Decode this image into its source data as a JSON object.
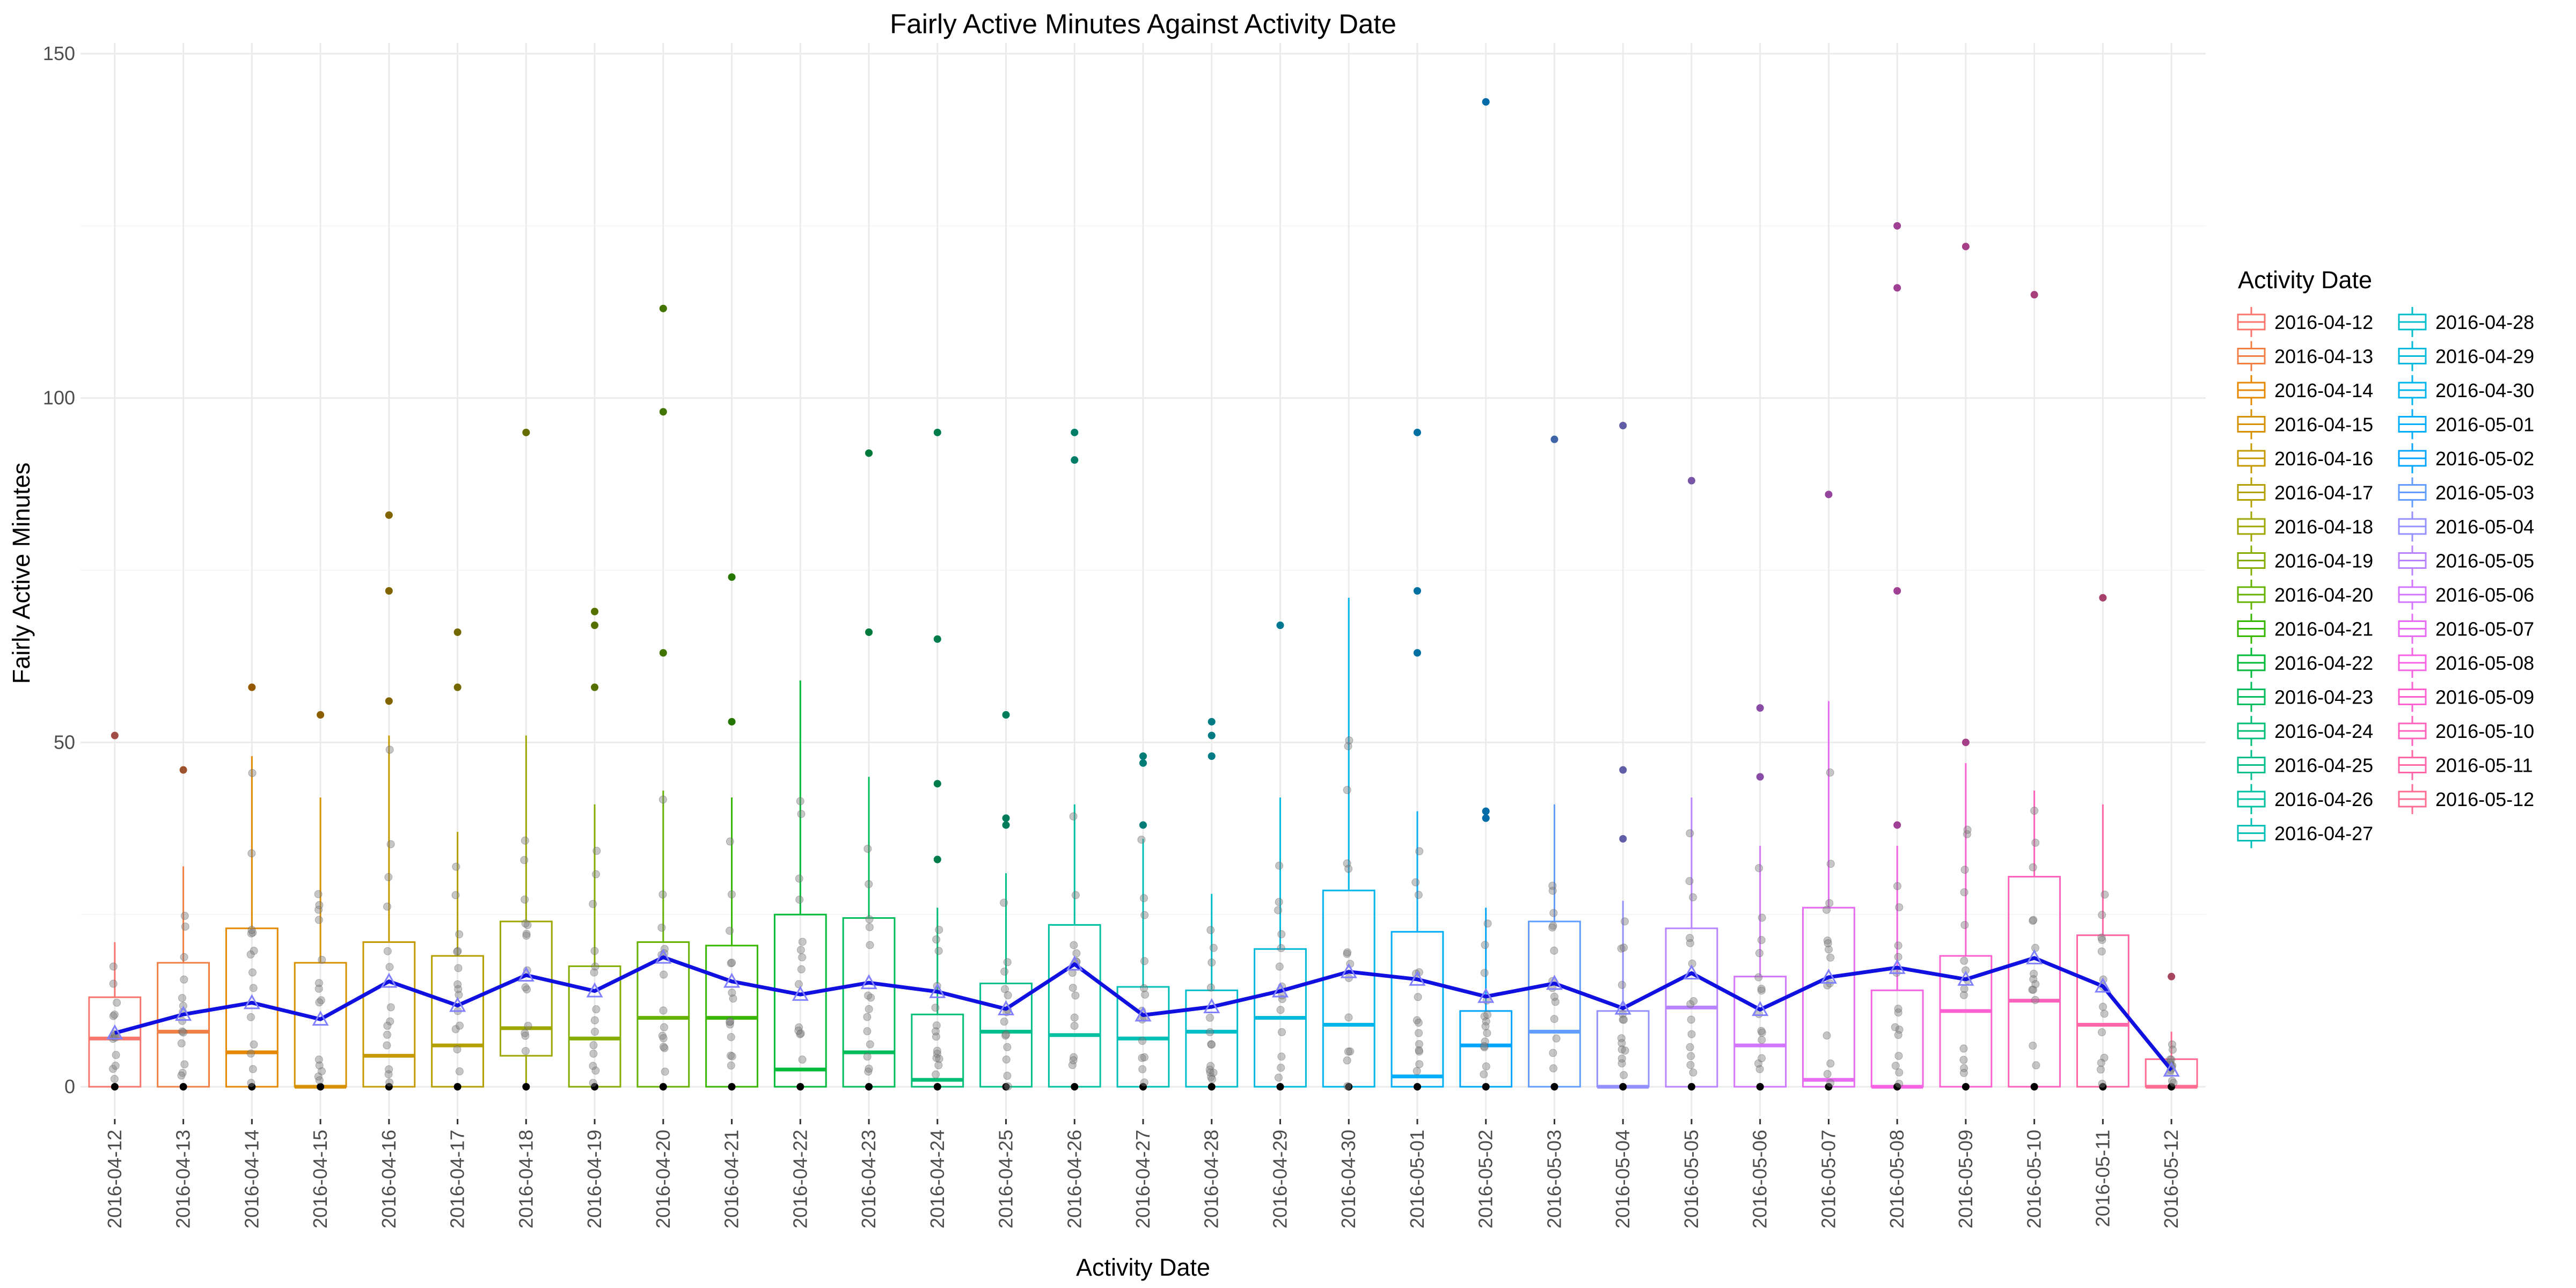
{
  "chart_data": {
    "type": "box",
    "title": "Fairly Active Minutes Against Activity Date",
    "xlabel": "Activity Date",
    "ylabel": "Fairly Active Minutes",
    "ylim": [
      -6,
      150
    ],
    "yticks": [
      0,
      50,
      100,
      150
    ],
    "grid": true,
    "legend_title": "Activity Date",
    "legend_position": "right",
    "mean_line_color": "#1010e0",
    "colors": [
      "#F8766D",
      "#F07F45",
      "#E48800",
      "#D69100",
      "#C69900",
      "#B3A000",
      "#9DA700",
      "#84AD00",
      "#65B200",
      "#38B600",
      "#00BA38",
      "#00BC5A",
      "#00BE75",
      "#00BF8C",
      "#00C0A2",
      "#00BFB7",
      "#00BDCA",
      "#00B9DC",
      "#00B4EC",
      "#00ADF9",
      "#00A5FF",
      "#619CFF",
      "#9590FF",
      "#B983FF",
      "#D376FF",
      "#E76BF3",
      "#F563E3",
      "#FD61D1",
      "#FF62BD",
      "#FF65A7",
      "#FF6C91"
    ],
    "categories": [
      "2016-04-12",
      "2016-04-13",
      "2016-04-14",
      "2016-04-15",
      "2016-04-16",
      "2016-04-17",
      "2016-04-18",
      "2016-04-19",
      "2016-04-20",
      "2016-04-21",
      "2016-04-22",
      "2016-04-23",
      "2016-04-24",
      "2016-04-25",
      "2016-04-26",
      "2016-04-27",
      "2016-04-28",
      "2016-04-29",
      "2016-04-30",
      "2016-05-01",
      "2016-05-02",
      "2016-05-03",
      "2016-05-04",
      "2016-05-05",
      "2016-05-06",
      "2016-05-07",
      "2016-05-08",
      "2016-05-09",
      "2016-05-10",
      "2016-05-11",
      "2016-05-12"
    ],
    "boxes": [
      {
        "min": 0,
        "q1": 0,
        "median": 7,
        "q3": 13,
        "max": 21,
        "mean": 7.8,
        "outliers": [
          51
        ]
      },
      {
        "min": 0,
        "q1": 0,
        "median": 8,
        "q3": 18,
        "max": 32,
        "mean": 10.5,
        "outliers": [
          46
        ]
      },
      {
        "min": 0,
        "q1": 0,
        "median": 5,
        "q3": 23,
        "max": 48,
        "mean": 12.2,
        "outliers": [
          58
        ]
      },
      {
        "min": 0,
        "q1": 0,
        "median": 0,
        "q3": 18,
        "max": 42,
        "mean": 9.8,
        "outliers": [
          54
        ]
      },
      {
        "min": 0,
        "q1": 0,
        "median": 4.5,
        "q3": 21,
        "max": 51,
        "mean": 15.3,
        "outliers": [
          56,
          72,
          83
        ]
      },
      {
        "min": 0,
        "q1": 0,
        "median": 6,
        "q3": 19,
        "max": 37,
        "mean": 11.8,
        "outliers": [
          58,
          66
        ]
      },
      {
        "min": 0,
        "q1": 4.5,
        "median": 8.5,
        "q3": 24,
        "max": 51,
        "mean": 16.2,
        "outliers": [
          95
        ]
      },
      {
        "min": 0,
        "q1": 0,
        "median": 7,
        "q3": 17.5,
        "max": 41,
        "mean": 13.9,
        "outliers": [
          58,
          67,
          69
        ]
      },
      {
        "min": 0,
        "q1": 0,
        "median": 10,
        "q3": 21,
        "max": 43,
        "mean": 18.8,
        "outliers": [
          63,
          98,
          113
        ]
      },
      {
        "min": 0,
        "q1": 0,
        "median": 10,
        "q3": 20.5,
        "max": 42,
        "mean": 15.3,
        "outliers": [
          53,
          74
        ]
      },
      {
        "min": 0,
        "q1": 0,
        "median": 2.5,
        "q3": 25,
        "max": 59,
        "mean": 13.4,
        "outliers": []
      },
      {
        "min": 0,
        "q1": 0,
        "median": 5,
        "q3": 24.5,
        "max": 45,
        "mean": 15.1,
        "outliers": [
          66,
          92
        ]
      },
      {
        "min": 0,
        "q1": 0,
        "median": 1,
        "q3": 10.5,
        "max": 26,
        "mean": 13.8,
        "outliers": [
          33,
          44,
          65,
          95
        ]
      },
      {
        "min": 0,
        "q1": 0,
        "median": 8,
        "q3": 15,
        "max": 31,
        "mean": 11.3,
        "outliers": [
          38,
          39,
          54
        ]
      },
      {
        "min": 0,
        "q1": 0,
        "median": 7.5,
        "q3": 23.5,
        "max": 41,
        "mean": 17.8,
        "outliers": [
          91,
          95
        ]
      },
      {
        "min": 0,
        "q1": 0,
        "median": 7,
        "q3": 14.5,
        "max": 36,
        "mean": 10.4,
        "outliers": [
          38,
          47,
          48
        ]
      },
      {
        "min": 0,
        "q1": 0,
        "median": 8,
        "q3": 14,
        "max": 28,
        "mean": 11.6,
        "outliers": [
          48,
          51,
          53
        ]
      },
      {
        "min": 0,
        "q1": 0,
        "median": 10,
        "q3": 20,
        "max": 42,
        "mean": 13.9,
        "outliers": [
          67
        ]
      },
      {
        "min": 0,
        "q1": 0,
        "median": 9,
        "q3": 28.5,
        "max": 71,
        "mean": 16.7,
        "outliers": []
      },
      {
        "min": 0,
        "q1": 0,
        "median": 1.5,
        "q3": 22.5,
        "max": 40,
        "mean": 15.6,
        "outliers": [
          63,
          72,
          95
        ]
      },
      {
        "min": 0,
        "q1": 0,
        "median": 6,
        "q3": 11,
        "max": 26,
        "mean": 13.1,
        "outliers": [
          39,
          40,
          143
        ]
      },
      {
        "min": 0,
        "q1": 0,
        "median": 8,
        "q3": 24,
        "max": 41,
        "mean": 15.0,
        "outliers": [
          94
        ]
      },
      {
        "min": 0,
        "q1": 0,
        "median": 0,
        "q3": 11,
        "max": 27,
        "mean": 11.4,
        "outliers": [
          36,
          46,
          96
        ]
      },
      {
        "min": 0,
        "q1": 0,
        "median": 11.5,
        "q3": 23,
        "max": 42,
        "mean": 16.5,
        "outliers": [
          88
        ]
      },
      {
        "min": 0,
        "q1": 0,
        "median": 6,
        "q3": 16,
        "max": 35,
        "mean": 11.2,
        "outliers": [
          45,
          55
        ]
      },
      {
        "min": 0,
        "q1": 0,
        "median": 1,
        "q3": 26,
        "max": 56,
        "mean": 15.9,
        "outliers": [
          86
        ]
      },
      {
        "min": 0,
        "q1": 0,
        "median": 0,
        "q3": 14,
        "max": 35,
        "mean": 17.3,
        "outliers": [
          38,
          72,
          116,
          125
        ]
      },
      {
        "min": 0,
        "q1": 0,
        "median": 11,
        "q3": 19,
        "max": 47,
        "mean": 15.6,
        "outliers": [
          50,
          122
        ]
      },
      {
        "min": 0,
        "q1": 0,
        "median": 12.5,
        "q3": 30.5,
        "max": 43,
        "mean": 18.7,
        "outliers": [
          115
        ]
      },
      {
        "min": 0,
        "q1": 0,
        "median": 9,
        "q3": 22,
        "max": 41,
        "mean": 14.6,
        "outliers": [
          71
        ]
      },
      {
        "min": 0,
        "q1": 0,
        "median": 0,
        "q3": 4,
        "max": 8,
        "mean": 2.4,
        "outliers": [
          16
        ]
      }
    ]
  }
}
